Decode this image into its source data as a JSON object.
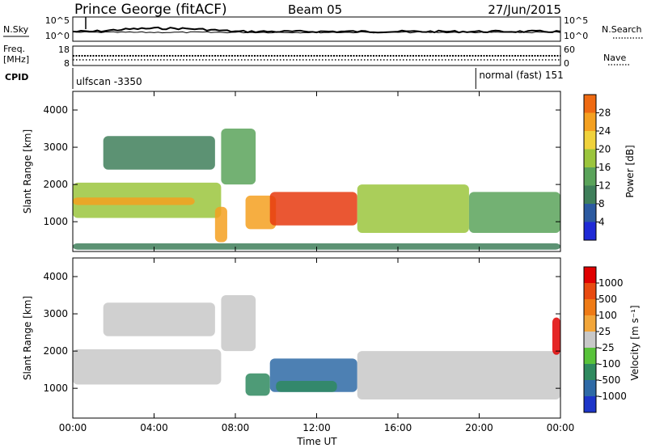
{
  "header": {
    "station": "Prince George (fitACF)",
    "beam": "Beam 05",
    "date": "27/Jun/2015"
  },
  "strip": {
    "nsky_label": "N.Sky",
    "nsky_ticks": [
      "10^5",
      "10^0"
    ],
    "nsearch_label": "N.Search",
    "nsearch_ticks": [
      "10^5",
      "10^0"
    ],
    "freq_label": "Freq.",
    "freq_unit": "[MHz]",
    "freq_ticks": [
      "18",
      "8"
    ],
    "nave_label": "Nave",
    "nave_ticks": [
      "60",
      "0"
    ],
    "cpid_label": "CPID",
    "cpid_segments": [
      {
        "label": "ulfscan -3350",
        "start": "00:00",
        "end": "19:50"
      },
      {
        "label": "normal (fast) 151",
        "start": "19:50",
        "end": "24:00"
      }
    ]
  },
  "axes": {
    "xlabel": "Time UT",
    "xticks": [
      "00:00",
      "04:00",
      "08:00",
      "12:00",
      "16:00",
      "20:00",
      "00:00"
    ],
    "xticks_hours": [
      0,
      4,
      8,
      12,
      16,
      20,
      24
    ],
    "ylabel": "Slant Range [km]",
    "yticks": [
      "1000",
      "2000",
      "3000",
      "4000"
    ],
    "ytick_values": [
      1000,
      2000,
      3000,
      4000
    ],
    "ylim": [
      200,
      4500
    ]
  },
  "power_colorbar": {
    "title": "Power [dB]",
    "ticks": [
      "4",
      "8",
      "12",
      "16",
      "20",
      "24",
      "28"
    ],
    "colors": [
      "#1f2ad6",
      "#2c5aa0",
      "#3f7f5a",
      "#5aa35a",
      "#9bc53d",
      "#f0d23c",
      "#f4a020",
      "#ef6a12",
      "#e63a0f",
      "#e00000"
    ]
  },
  "velocity_colorbar": {
    "title": "Velocity [m s⁻¹]",
    "ticks": [
      "1000",
      "500",
      "100",
      "25",
      "-25",
      "-100",
      "-500",
      "-1000"
    ],
    "colors": [
      "#1d36c9",
      "#2e6aa6",
      "#2f8a5f",
      "#58c23a",
      "#c8c8c8",
      "#f2a63a",
      "#ef7b16",
      "#e84a10",
      "#e00000"
    ]
  },
  "chart_data": {
    "type": "heatmap",
    "x_unit": "hours UT",
    "y_unit": "km",
    "regions": [
      {
        "t": [
          0,
          7.3
        ],
        "r": [
          1100,
          2050
        ],
        "level": 14
      },
      {
        "t": [
          0,
          6.0
        ],
        "r": [
          1450,
          1650
        ],
        "level": 22
      },
      {
        "t": [
          1.5,
          7.0
        ],
        "r": [
          2400,
          3300
        ],
        "level": 7
      },
      {
        "t": [
          7.0,
          7.6
        ],
        "r": [
          450,
          1400
        ],
        "level": 20
      },
      {
        "t": [
          7.3,
          9.0
        ],
        "r": [
          2000,
          3500
        ],
        "level": 10
      },
      {
        "t": [
          8.5,
          10.0
        ],
        "r": [
          800,
          1700
        ],
        "level": 20
      },
      {
        "t": [
          9.7,
          14.0
        ],
        "r": [
          900,
          1800
        ],
        "level": 28
      },
      {
        "t": [
          14.0,
          19.5
        ],
        "r": [
          700,
          2000
        ],
        "level": 13
      },
      {
        "t": [
          19.5,
          24.0
        ],
        "r": [
          700,
          1800
        ],
        "level": 12
      },
      {
        "t": [
          0,
          24.0
        ],
        "r": [
          250,
          420
        ],
        "level": 8
      }
    ],
    "velocity_regions": [
      {
        "t": [
          0,
          7.3
        ],
        "r": [
          1100,
          2050
        ],
        "v": 10
      },
      {
        "t": [
          1.5,
          7.0
        ],
        "r": [
          2400,
          3300
        ],
        "v": 0
      },
      {
        "t": [
          7.3,
          9.0
        ],
        "r": [
          2000,
          3500
        ],
        "v": 0
      },
      {
        "t": [
          8.5,
          9.7
        ],
        "r": [
          800,
          1400
        ],
        "v": 200
      },
      {
        "t": [
          9.7,
          14.0
        ],
        "r": [
          900,
          1800
        ],
        "v": 600
      },
      {
        "t": [
          10.0,
          13.0
        ],
        "r": [
          900,
          1200
        ],
        "v": 200
      },
      {
        "t": [
          14.0,
          24.0
        ],
        "r": [
          700,
          2000
        ],
        "v": 0
      },
      {
        "t": [
          23.6,
          24.0
        ],
        "r": [
          1900,
          2900
        ],
        "v": -900
      }
    ]
  }
}
